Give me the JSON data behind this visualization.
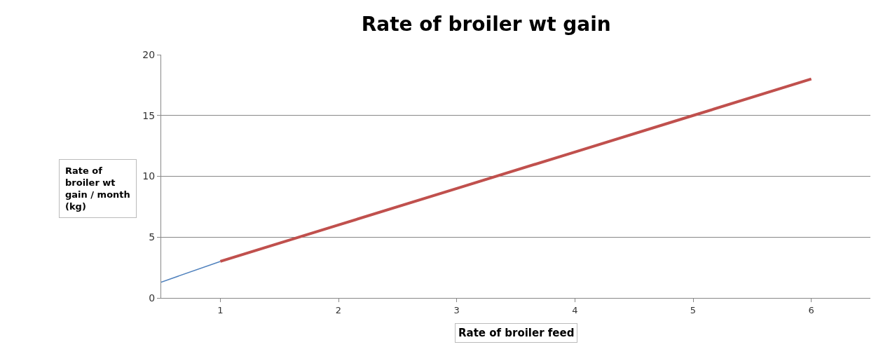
{
  "chart_data": {
    "type": "line",
    "title": "Rate of broiler wt gain",
    "xlabel": "Rate of broiler feed",
    "ylabel": "Rate of broiler wt gain / month (kg)",
    "xlim": [
      0.5,
      6.5
    ],
    "xticks": [
      1,
      2,
      3,
      4,
      5,
      6
    ],
    "ylim": [
      0,
      20
    ],
    "yticks": [
      0,
      5,
      10,
      15,
      20
    ],
    "grid": "y",
    "legend": false,
    "series": [
      {
        "color": "#4f81bd",
        "x": [
          0.5,
          1
        ],
        "values": [
          1.3,
          3
        ]
      },
      {
        "color": "#c0504d",
        "x": [
          1,
          2,
          3,
          4,
          5,
          6
        ],
        "values": [
          3,
          6,
          9,
          12,
          15,
          18
        ]
      }
    ]
  }
}
